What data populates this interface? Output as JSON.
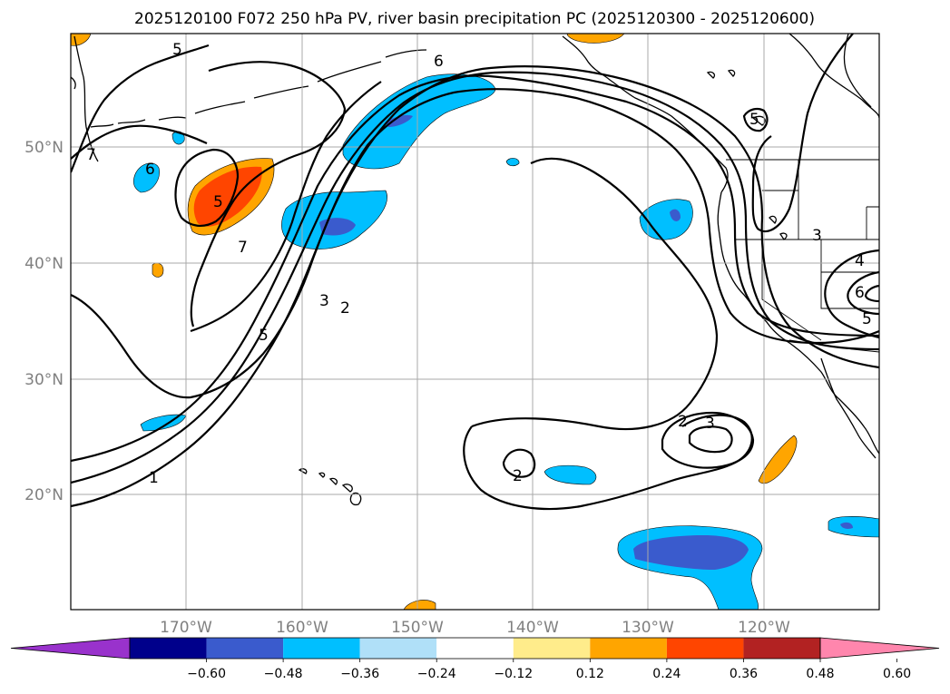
{
  "title": "2025120100 F072 250 hPa PV, river basin precipitation PC (2025120300 - 2025120600)",
  "lat_labels": [
    "50°N",
    "40°N",
    "30°N",
    "20°N"
  ],
  "lon_labels": [
    "170°W",
    "160°W",
    "150°W",
    "140°W",
    "130°W",
    "120°W"
  ],
  "colorbar": {
    "tick_labels": [
      "−0.60",
      "−0.48",
      "−0.36",
      "−0.24",
      "−0.12",
      "0.12",
      "0.24",
      "0.36",
      "0.48",
      "0.60"
    ],
    "colors": [
      "#9932cc",
      "#00008b",
      "#3a5bcd",
      "#00bfff",
      "#b0e0f8",
      "#ffffff",
      "#ffec8b",
      "#ffa500",
      "#ff4500",
      "#b22222",
      "#ff86ad"
    ]
  },
  "contour_labels": [
    "5",
    "6",
    "7",
    "6",
    "5",
    "7",
    "5",
    "3",
    "2",
    "1",
    "2",
    "2",
    "3",
    "3",
    "4",
    "6",
    "5",
    "5"
  ],
  "colors": {
    "orange": "#ffa500",
    "red_orange": "#ff4500",
    "light_blue": "#00bfff",
    "royal_blue": "#3a5bcd"
  }
}
